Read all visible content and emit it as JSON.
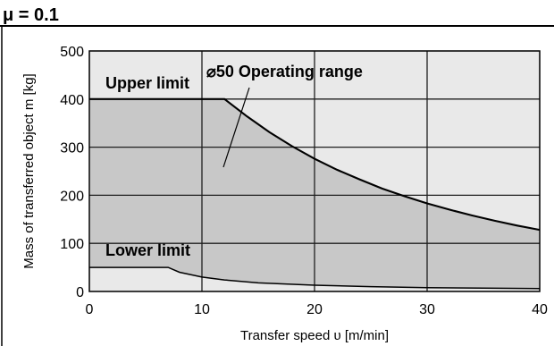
{
  "chart_data": {
    "type": "area",
    "header": "μ = 0.1",
    "xlabel": "Transfer speed υ [m/min]",
    "ylabel": "Mass of transferred object m [kg]",
    "xlim": [
      0,
      40
    ],
    "ylim": [
      0,
      500
    ],
    "xticks": [
      0,
      10,
      20,
      30,
      40
    ],
    "yticks": [
      0,
      100,
      200,
      300,
      400,
      500
    ],
    "grid": true,
    "series": [
      {
        "name": "Upper limit",
        "points": [
          [
            0,
            400
          ],
          [
            12,
            400
          ],
          [
            14,
            364
          ],
          [
            16,
            331
          ],
          [
            18,
            302
          ],
          [
            20,
            276
          ],
          [
            22,
            253
          ],
          [
            24,
            233
          ],
          [
            26,
            214
          ],
          [
            28,
            198
          ],
          [
            30,
            183
          ],
          [
            32,
            170
          ],
          [
            34,
            158
          ],
          [
            36,
            147
          ],
          [
            38,
            137
          ],
          [
            40,
            128
          ]
        ]
      },
      {
        "name": "Lower limit",
        "points": [
          [
            0,
            50
          ],
          [
            7,
            50
          ],
          [
            8,
            40
          ],
          [
            10,
            30
          ],
          [
            12,
            24
          ],
          [
            15,
            18
          ],
          [
            20,
            13
          ],
          [
            25,
            10
          ],
          [
            30,
            8
          ],
          [
            35,
            7
          ],
          [
            40,
            6
          ]
        ]
      }
    ],
    "annotation": "⌀50 Operating range",
    "colors": {
      "operating_range": "#c8c8c8",
      "plot_background": "#e9e9e9",
      "grid": "#1f1f1f",
      "line": "#000000"
    }
  }
}
